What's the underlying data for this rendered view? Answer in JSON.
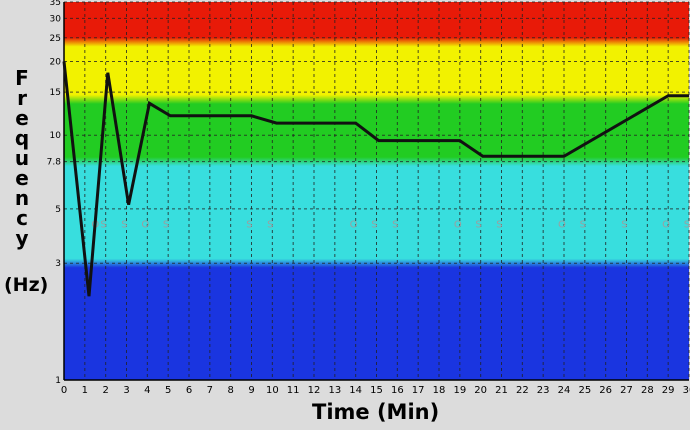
{
  "chart_data": {
    "type": "line",
    "xlabel": "Time (Min)",
    "ylabel": "Frequency",
    "ylabel_unit": "(Hz)",
    "y_scale": "log",
    "xlim": [
      0,
      30
    ],
    "ylim": [
      1,
      35
    ],
    "x_ticks": [
      0,
      1,
      2,
      3,
      4,
      5,
      6,
      7,
      8,
      9,
      10,
      11,
      12,
      13,
      14,
      15,
      16,
      17,
      18,
      19,
      20,
      21,
      22,
      23,
      24,
      25,
      26,
      27,
      28,
      29,
      30
    ],
    "y_ticks": [
      1,
      3,
      5,
      7.8,
      10,
      15,
      20,
      25,
      30,
      35
    ],
    "y_tick_labels": [
      "1",
      "3",
      "5",
      "7.8",
      "10",
      "15",
      "20",
      "25",
      "30",
      "35"
    ],
    "grid": true,
    "bands": [
      {
        "from": 1,
        "to": 3,
        "color": "#1a35e0"
      },
      {
        "from": 3,
        "to": 7.8,
        "color": "#38dede"
      },
      {
        "from": 7.8,
        "to": 14,
        "color": "#22cc22"
      },
      {
        "from": 14,
        "to": 24,
        "color": "#f2f200"
      },
      {
        "from": 24,
        "to": 35,
        "color": "#e81a08"
      }
    ],
    "series": [
      {
        "color": "#111111",
        "x": [
          0,
          1.2,
          2.1,
          3.1,
          4.1,
          5.1,
          9,
          10.2,
          14,
          15.1,
          19,
          20.1,
          24,
          29,
          30
        ],
        "y": [
          20,
          2.2,
          18,
          5.2,
          13.5,
          12,
          12,
          11.2,
          11.2,
          9.5,
          9.5,
          8.2,
          8.2,
          14.5,
          14.5
        ]
      }
    ],
    "markers": [
      {
        "x": 1.5,
        "label": "O"
      },
      {
        "x": 1.9,
        "label": "S"
      },
      {
        "x": 2.9,
        "label": "S"
      },
      {
        "x": 3.9,
        "label": "O"
      },
      {
        "x": 4.9,
        "label": "S"
      },
      {
        "x": 8.9,
        "label": "S"
      },
      {
        "x": 9.9,
        "label": "S"
      },
      {
        "x": 13.9,
        "label": "O"
      },
      {
        "x": 14.9,
        "label": "S"
      },
      {
        "x": 15.9,
        "label": "S"
      },
      {
        "x": 18.9,
        "label": "O"
      },
      {
        "x": 19.9,
        "label": "S"
      },
      {
        "x": 20.9,
        "label": "S"
      },
      {
        "x": 23.9,
        "label": "O"
      },
      {
        "x": 24.9,
        "label": "S"
      },
      {
        "x": 26.9,
        "label": "S"
      },
      {
        "x": 28.9,
        "label": "O"
      },
      {
        "x": 29.9,
        "label": "S"
      }
    ],
    "marker_y": 4.2
  }
}
